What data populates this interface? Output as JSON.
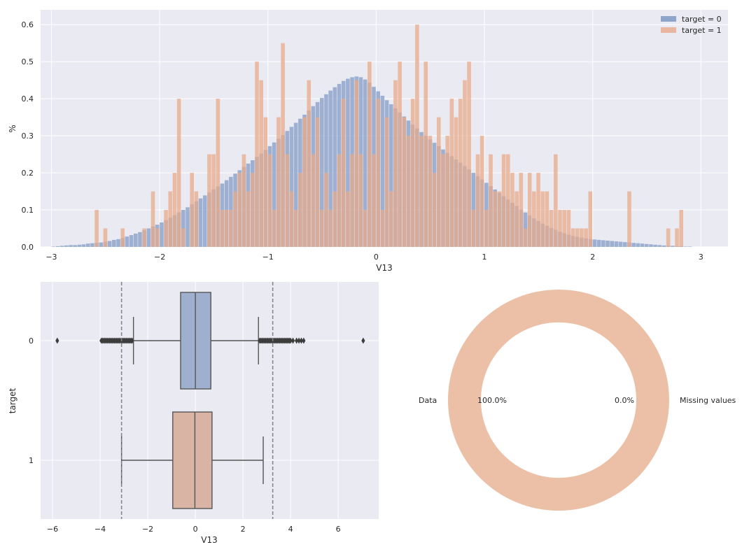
{
  "chart_data": [
    {
      "type": "histogram",
      "xlabel": "V13",
      "ylabel": "%",
      "xlim": [
        -3.1,
        3.25
      ],
      "ylim": [
        0,
        0.64
      ],
      "x_ticks": [
        -3,
        -2,
        -1,
        0,
        1,
        2,
        3
      ],
      "y_ticks": [
        0.0,
        0.1,
        0.2,
        0.3,
        0.4,
        0.5,
        0.6
      ],
      "bin_start": -3.0,
      "bin_width": 0.04,
      "legend_position": "top-right",
      "grid": true,
      "series": [
        {
          "name": "target = 0",
          "color": "#8fa6cc",
          "values": [
            0.001,
            0.002,
            0.003,
            0.004,
            0.005,
            0.005,
            0.006,
            0.007,
            0.009,
            0.01,
            0.011,
            0.012,
            0.014,
            0.016,
            0.019,
            0.021,
            0.024,
            0.028,
            0.032,
            0.036,
            0.04,
            0.045,
            0.05,
            0.055,
            0.06,
            0.066,
            0.072,
            0.079,
            0.086,
            0.093,
            0.1,
            0.107,
            0.115,
            0.123,
            0.131,
            0.139,
            0.147,
            0.155,
            0.163,
            0.171,
            0.18,
            0.189,
            0.198,
            0.207,
            0.216,
            0.225,
            0.234,
            0.243,
            0.252,
            0.262,
            0.272,
            0.282,
            0.292,
            0.302,
            0.313,
            0.324,
            0.335,
            0.346,
            0.357,
            0.368,
            0.38,
            0.391,
            0.402,
            0.412,
            0.422,
            0.431,
            0.44,
            0.448,
            0.454,
            0.458,
            0.46,
            0.458,
            0.452,
            0.443,
            0.432,
            0.42,
            0.408,
            0.396,
            0.385,
            0.374,
            0.363,
            0.352,
            0.341,
            0.33,
            0.32,
            0.31,
            0.3,
            0.29,
            0.281,
            0.272,
            0.263,
            0.254,
            0.245,
            0.236,
            0.227,
            0.218,
            0.209,
            0.2,
            0.191,
            0.182,
            0.173,
            0.164,
            0.155,
            0.146,
            0.137,
            0.128,
            0.119,
            0.11,
            0.101,
            0.093,
            0.085,
            0.077,
            0.07,
            0.063,
            0.057,
            0.051,
            0.046,
            0.041,
            0.037,
            0.033,
            0.03,
            0.027,
            0.025,
            0.023,
            0.021,
            0.02,
            0.019,
            0.018,
            0.017,
            0.016,
            0.015,
            0.014,
            0.013,
            0.012,
            0.011,
            0.01,
            0.009,
            0.008,
            0.007,
            0.006,
            0.005,
            0.004,
            0.003,
            0.003,
            0.002,
            0.002,
            0.001,
            0.001
          ]
        },
        {
          "name": "target = 1",
          "color": "#e8a98a",
          "values": [
            0,
            0,
            0,
            0,
            0,
            0,
            0,
            0,
            0,
            0,
            0.1,
            0,
            0.05,
            0,
            0,
            0,
            0.05,
            0,
            0,
            0,
            0,
            0.05,
            0,
            0.15,
            0.05,
            0,
            0.1,
            0.15,
            0.2,
            0.4,
            0.05,
            0,
            0.2,
            0.15,
            0,
            0,
            0.25,
            0.25,
            0.4,
            0.1,
            0.1,
            0.1,
            0.15,
            0.2,
            0.25,
            0.15,
            0.2,
            0.5,
            0.45,
            0.35,
            0.25,
            0.1,
            0.35,
            0.55,
            0.25,
            0.15,
            0.1,
            0.2,
            0.35,
            0.45,
            0.25,
            0.35,
            0.1,
            0.2,
            0.1,
            0.15,
            0.25,
            0.4,
            0.15,
            0.25,
            0.45,
            0.25,
            0.1,
            0.5,
            0.25,
            0.4,
            0.1,
            0.35,
            0.15,
            0.45,
            0.5,
            0.35,
            0.3,
            0.4,
            0.6,
            0.3,
            0.5,
            0.3,
            0.2,
            0.35,
            0.25,
            0.3,
            0.4,
            0.35,
            0.4,
            0.45,
            0.5,
            0.1,
            0.25,
            0.3,
            0.1,
            0.25,
            0.15,
            0.15,
            0.25,
            0.25,
            0.2,
            0.15,
            0.2,
            0.05,
            0.2,
            0.15,
            0.2,
            0.15,
            0.15,
            0.1,
            0.25,
            0.1,
            0.1,
            0.1,
            0.05,
            0.05,
            0.05,
            0.05,
            0.15,
            0,
            0,
            0,
            0,
            0,
            0,
            0,
            0,
            0.15,
            0,
            0,
            0,
            0,
            0,
            0,
            0,
            0,
            0.05,
            0,
            0.05,
            0.1,
            0,
            0,
            0,
            0,
            0,
            0,
            0
          ]
        }
      ]
    },
    {
      "type": "boxplot",
      "xlabel": "V13",
      "ylabel": "target",
      "xlim": [
        -6.5,
        7.7
      ],
      "x_ticks": [
        -6,
        -4,
        -2,
        0,
        2,
        4,
        6
      ],
      "categories": [
        "0",
        "1"
      ],
      "reference_lines": [
        -3.1,
        3.25
      ],
      "grid": true,
      "boxes": [
        {
          "name": "0",
          "color": "#9fb0cf",
          "q1": -0.62,
          "median": 0.0,
          "q3": 0.65,
          "whisker_low": -2.6,
          "whisker_high": 2.65,
          "outliers": [
            -5.8,
            -3.95,
            -3.9,
            -3.85,
            -3.8,
            -3.75,
            -3.7,
            -3.65,
            -3.6,
            -3.55,
            -3.5,
            -3.45,
            -3.4,
            -3.35,
            -3.3,
            -3.25,
            -3.2,
            -3.15,
            -3.1,
            -3.05,
            -3.0,
            -2.95,
            -2.9,
            -2.85,
            -2.8,
            -2.75,
            -2.7,
            -2.65,
            2.7,
            2.75,
            2.8,
            2.85,
            2.9,
            2.95,
            3.0,
            3.05,
            3.1,
            3.15,
            3.2,
            3.25,
            3.3,
            3.35,
            3.4,
            3.45,
            3.5,
            3.55,
            3.6,
            3.65,
            3.7,
            3.75,
            3.8,
            3.85,
            3.9,
            3.95,
            4.0,
            4.1,
            4.25,
            4.35,
            4.45,
            4.55,
            7.05
          ]
        },
        {
          "name": "1",
          "color": "#d9b3a3",
          "q1": -0.95,
          "median": -0.02,
          "q3": 0.7,
          "whisker_low": -3.1,
          "whisker_high": 2.85,
          "outliers": []
        }
      ]
    },
    {
      "type": "pie",
      "style": "donut",
      "slices": [
        {
          "label": "Data",
          "value": 100.0,
          "pct_text": "100.0%",
          "color": "#ebc0a6"
        },
        {
          "label": "Missing values",
          "value": 0.0,
          "pct_text": "0.0%",
          "color": "#8fa6cc"
        }
      ]
    }
  ]
}
